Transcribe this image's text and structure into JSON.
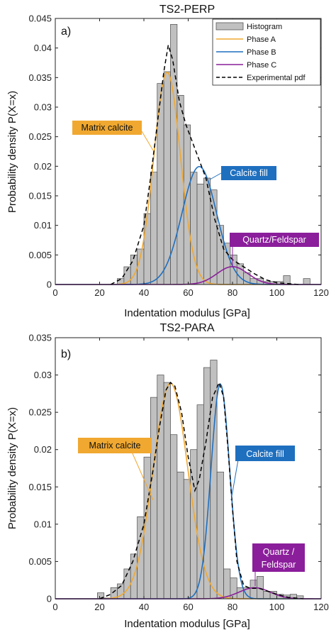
{
  "chart_data": [
    {
      "type": "histogram",
      "title": "TS2-PERP",
      "panel_label": "a)",
      "xlabel": "Indentation modulus [GPa]",
      "ylabel": "Probability density P(X=x)",
      "xlim": [
        0,
        120
      ],
      "ylim": [
        0,
        0.045
      ],
      "xticks": [
        0,
        20,
        40,
        60,
        80,
        100,
        120
      ],
      "yticks": [
        0,
        0.005,
        0.01,
        0.015,
        0.02,
        0.025,
        0.03,
        0.035,
        0.04,
        0.045
      ],
      "ytick_labels": [
        "0",
        "0.005",
        "0.01",
        "0.015",
        "0.02",
        "0.025",
        "0.03",
        "0.035",
        "0.04",
        "0.045"
      ],
      "bin_width": 3,
      "bin_start": 28,
      "histogram": [
        0.001,
        0.003,
        0.005,
        0.006,
        0.012,
        0.019,
        0.034,
        0.036,
        0.044,
        0.032,
        0.027,
        0.019,
        0.017,
        0.018,
        0.016,
        0.01,
        0.007,
        0.005,
        0.0035,
        0.002,
        0.001,
        0.001,
        0.0005,
        0.0005,
        0.0005,
        0.0015,
        0.0,
        0.0,
        0.001
      ],
      "series": [
        {
          "name": "Phase A",
          "color": "#f0a830",
          "mu": 50.5,
          "sigma": 6.0,
          "weight": 0.54
        },
        {
          "name": "Phase B",
          "color": "#1f6fbf",
          "mu": 65.0,
          "sigma": 7.8,
          "weight": 0.39
        },
        {
          "name": "Phase C",
          "color": "#8b1e9b",
          "mu": 80.0,
          "sigma": 7.0,
          "weight": 0.053
        }
      ],
      "experimental_pdf": {
        "name": "Experimental pdf",
        "color": "#000000",
        "points": [
          [
            25,
            0
          ],
          [
            30,
            0.001
          ],
          [
            35,
            0.004
          ],
          [
            40,
            0.01
          ],
          [
            43,
            0.018
          ],
          [
            46,
            0.027
          ],
          [
            49,
            0.036
          ],
          [
            51,
            0.0405
          ],
          [
            53,
            0.038
          ],
          [
            56,
            0.031
          ],
          [
            59,
            0.027
          ],
          [
            62,
            0.024
          ],
          [
            65,
            0.021
          ],
          [
            68,
            0.018
          ],
          [
            72,
            0.011
          ],
          [
            76,
            0.006
          ],
          [
            80,
            0.0042
          ],
          [
            85,
            0.003
          ],
          [
            90,
            0.0018
          ],
          [
            95,
            0.0008
          ],
          [
            100,
            0.0003
          ],
          [
            110,
            0
          ]
        ]
      },
      "legend": {
        "position": "top-right",
        "entries": [
          "Histogram",
          "Phase A",
          "Phase B",
          "Phase C",
          "Experimental pdf"
        ]
      },
      "annotations": [
        {
          "text": "Matrix calcite",
          "color": "#f0a830",
          "x": 44,
          "y": 0.016
        },
        {
          "text": "Calcite fill",
          "color": "#1f6fbf",
          "x": 68,
          "y": 0.02
        },
        {
          "text": "Quartz/Feldspar",
          "color": "#8b1e9b",
          "x": 80,
          "y": 0.0035
        }
      ]
    },
    {
      "type": "histogram",
      "title": "TS2-PARA",
      "panel_label": "b)",
      "xlabel": "Indentation modulus [GPa]",
      "ylabel": "Probability density P(X=x)",
      "xlim": [
        0,
        120
      ],
      "ylim": [
        0,
        0.035
      ],
      "xticks": [
        0,
        20,
        40,
        60,
        80,
        100,
        120
      ],
      "yticks": [
        0,
        0.005,
        0.01,
        0.015,
        0.02,
        0.025,
        0.03,
        0.035
      ],
      "ytick_labels": [
        "0",
        "0.005",
        "0.01",
        "0.015",
        "0.02",
        "0.025",
        "0.03",
        "0.035"
      ],
      "bin_width": 3,
      "bin_start": 19,
      "histogram": [
        0.0008,
        0.0001,
        0.0015,
        0.002,
        0.004,
        0.006,
        0.011,
        0.019,
        0.027,
        0.03,
        0.029,
        0.022,
        0.017,
        0.016,
        0.02,
        0.026,
        0.031,
        0.032,
        0.017,
        0.004,
        0.0028,
        0.0015,
        0.0015,
        0.0025,
        0.003,
        0.001,
        0.001,
        0.0006,
        0.0005,
        0.0006,
        0.0004
      ],
      "series": [
        {
          "name": "Phase A",
          "color": "#f0a830",
          "mu": 52.0,
          "sigma": 7.8,
          "weight": 0.565
        },
        {
          "name": "Phase B",
          "color": "#1f6fbf",
          "mu": 74.5,
          "sigma": 4.2,
          "weight": 0.303
        },
        {
          "name": "Phase C",
          "color": "#8b1e9b",
          "mu": 90.0,
          "sigma": 7.0,
          "weight": 0.026
        }
      ],
      "experimental_pdf": {
        "name": "Experimental pdf",
        "color": "#000000",
        "points": [
          [
            20,
            0
          ],
          [
            25,
            0.0006
          ],
          [
            30,
            0.0018
          ],
          [
            35,
            0.005
          ],
          [
            40,
            0.01
          ],
          [
            44,
            0.017
          ],
          [
            47,
            0.023
          ],
          [
            50,
            0.028
          ],
          [
            52,
            0.029
          ],
          [
            54,
            0.0285
          ],
          [
            57,
            0.025
          ],
          [
            60,
            0.019
          ],
          [
            63,
            0.0145
          ],
          [
            65,
            0.016
          ],
          [
            68,
            0.021
          ],
          [
            71,
            0.027
          ],
          [
            74,
            0.029
          ],
          [
            76,
            0.027
          ],
          [
            78,
            0.02
          ],
          [
            80,
            0.012
          ],
          [
            82,
            0.005
          ],
          [
            85,
            0.0018
          ],
          [
            88,
            0.0014
          ],
          [
            92,
            0.0014
          ],
          [
            96,
            0.001
          ],
          [
            100,
            0.0006
          ],
          [
            105,
            0.0002
          ],
          [
            112,
            0
          ]
        ]
      },
      "annotations": [
        {
          "text": "Matrix calcite",
          "color": "#f0a830",
          "x": 45,
          "y": 0.014
        },
        {
          "text": "Calcite fill",
          "color": "#1f6fbf",
          "x": 77,
          "y": 0.014
        },
        {
          "text": "Quartz /",
          "color": "#8b1e9b",
          "x": 91,
          "y": 0.0016
        },
        {
          "text": "Feldspar",
          "color": "#8b1e9b",
          "x": 91,
          "y": 0.0016
        }
      ]
    }
  ]
}
